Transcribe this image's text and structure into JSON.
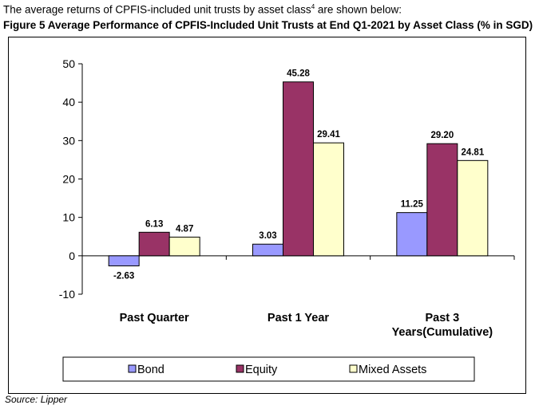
{
  "intro": {
    "text": "The average returns of CPFIS-included unit trusts by asset class",
    "footnote_marker": "4",
    "suffix": " are shown below:"
  },
  "figure_title": "Figure 5 Average Performance of CPFIS-Included Unit Trusts at End Q1-2021 by Asset Class (% in SGD)",
  "source": "Source: Lipper",
  "colors": {
    "bond": "#9999ff",
    "equity": "#993366",
    "mixed": "#ffffcc",
    "outline": "#000000"
  },
  "chart_data": {
    "type": "bar",
    "title": "",
    "xlabel": "",
    "ylabel": "",
    "categories": [
      [
        "Past Quarter"
      ],
      [
        "Past 1 Year"
      ],
      [
        "Past 3",
        "Years(Cumulative)"
      ]
    ],
    "series": [
      {
        "name": "Bond",
        "values": [
          -2.63,
          3.03,
          11.25
        ],
        "labels": [
          "-2.63",
          "3.03",
          "11.25"
        ],
        "color": "#9999ff"
      },
      {
        "name": "Equity",
        "values": [
          6.13,
          45.28,
          29.2
        ],
        "labels": [
          "6.13",
          "45.28",
          "29.20"
        ],
        "color": "#993366"
      },
      {
        "name": "Mixed Assets",
        "values": [
          4.87,
          29.41,
          24.81
        ],
        "labels": [
          "4.87",
          "29.41",
          "24.81"
        ],
        "color": "#ffffcc"
      }
    ],
    "ylim": [
      -10,
      50
    ],
    "yticks": [
      -10,
      0,
      10,
      20,
      30,
      40,
      50
    ],
    "grid": false,
    "legend": "bottom"
  }
}
